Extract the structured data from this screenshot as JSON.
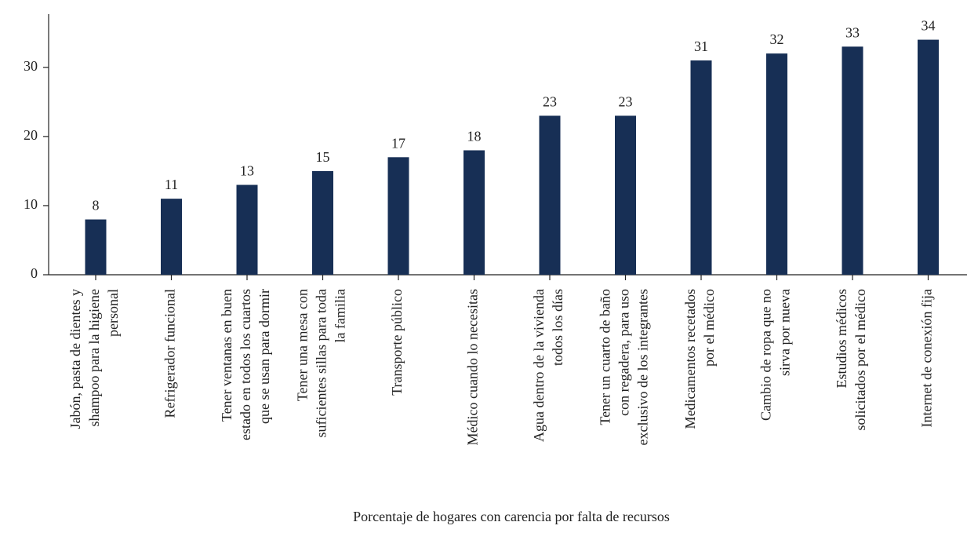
{
  "chart_data": {
    "type": "bar",
    "x_label": "Porcentaje de hogares con carencia por falta de recursos",
    "categories": [
      "Jabón, pasta de dientes y\nshampoo para la higiene\npersonal",
      "Refrigerador funcional",
      "Tener ventanas en buen\nestado en todos los cuartos\nque se usan para dormir",
      "Tener una mesa con\nsuficientes sillas para toda\nla familia",
      "Transporte público",
      "Médico cuando lo necesitas",
      "Agua dentro de la vivienda\ntodos los días",
      "Tener un cuarto de baño\ncon regadera, para uso\nexclusivo de los integrantes",
      "Medicamentos recetados\npor el médico",
      "Cambio de ropa que no\nsirva por nueva",
      "Estudios médicos\nsolicitados por el médico",
      "Internet de conexión fija"
    ],
    "values": [
      8,
      11,
      13,
      15,
      17,
      18,
      23,
      23,
      31,
      32,
      33,
      34
    ],
    "color": "#172f55",
    "ylim": [
      0,
      37.7
    ],
    "yticks": [
      0,
      10,
      20,
      30
    ],
    "grid": false
  }
}
